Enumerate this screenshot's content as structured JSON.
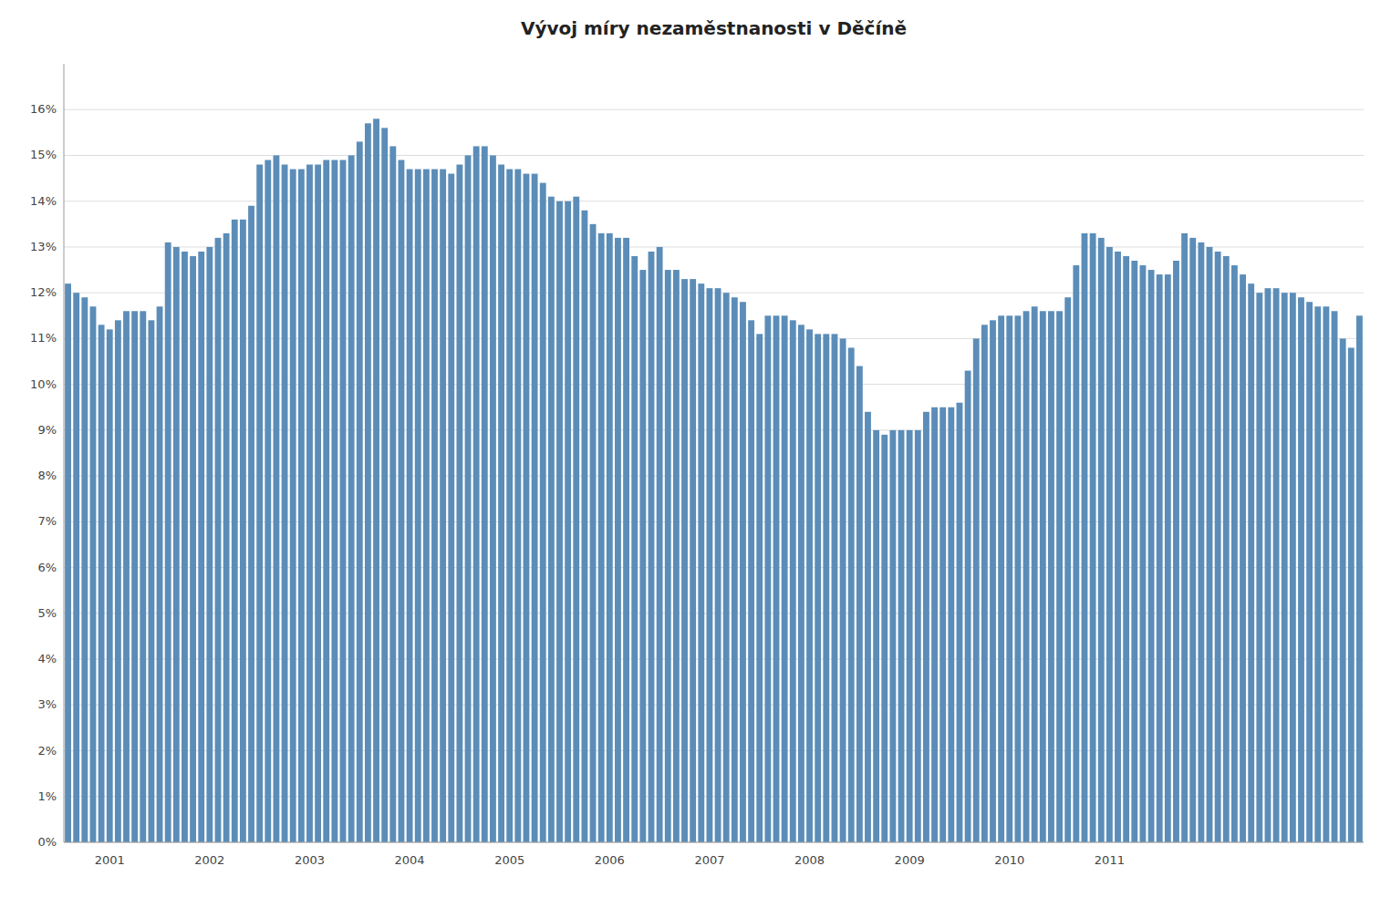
{
  "chart_data": {
    "type": "bar",
    "title": "Vývoj míry nezaměstnanosti v Děčíně",
    "color": "#5B8DB8",
    "grid": true,
    "ylim": [
      0,
      0.17
    ],
    "yticks": [
      {
        "value": 0.0,
        "label": "0%"
      },
      {
        "value": 0.01,
        "label": "1%"
      },
      {
        "value": 0.02,
        "label": "2%"
      },
      {
        "value": 0.03,
        "label": "3%"
      },
      {
        "value": 0.04,
        "label": "4%"
      },
      {
        "value": 0.05,
        "label": "5%"
      },
      {
        "value": 0.06,
        "label": "6%"
      },
      {
        "value": 0.07,
        "label": "7%"
      },
      {
        "value": 0.08,
        "label": "8%"
      },
      {
        "value": 0.09,
        "label": "9%"
      },
      {
        "value": 0.1,
        "label": "10%"
      },
      {
        "value": 0.11,
        "label": "11%"
      },
      {
        "value": 0.12,
        "label": "12%"
      },
      {
        "value": 0.13,
        "label": "13%"
      },
      {
        "value": 0.14,
        "label": "14%"
      },
      {
        "value": 0.15,
        "label": "15%"
      },
      {
        "value": 0.16,
        "label": "16%"
      }
    ],
    "categories": [
      null,
      null,
      null,
      null,
      null,
      "2001",
      null,
      null,
      null,
      null,
      null,
      null,
      null,
      null,
      null,
      null,
      null,
      "2002",
      null,
      null,
      null,
      null,
      null,
      null,
      null,
      null,
      null,
      null,
      null,
      "2003",
      null,
      null,
      null,
      null,
      null,
      null,
      null,
      null,
      null,
      null,
      null,
      "2004",
      null,
      null,
      null,
      null,
      null,
      null,
      null,
      null,
      null,
      null,
      null,
      "2005",
      null,
      null,
      null,
      null,
      null,
      null,
      null,
      null,
      null,
      null,
      null,
      "2006",
      null,
      null,
      null,
      null,
      null,
      null,
      null,
      null,
      null,
      null,
      null,
      "2007",
      null,
      null,
      null,
      null,
      null,
      null,
      null,
      null,
      null,
      null,
      null,
      "2008",
      null,
      null,
      null,
      null,
      null,
      null,
      null,
      null,
      null,
      null,
      null,
      "2009",
      null,
      null,
      null,
      null,
      null,
      null,
      null,
      null,
      null,
      null,
      null,
      "2010",
      null,
      null,
      null,
      null,
      null,
      null,
      null,
      null,
      null,
      null,
      null,
      "2011",
      null,
      null,
      null,
      null,
      null,
      null,
      null,
      null,
      null,
      null,
      null,
      null,
      null,
      null,
      null,
      null,
      null,
      null,
      null,
      null,
      null,
      null,
      null,
      null,
      null,
      null,
      null,
      null,
      null,
      null
    ],
    "values": [
      0.122,
      0.12,
      0.119,
      0.117,
      0.113,
      0.112,
      0.114,
      0.116,
      0.116,
      0.116,
      0.114,
      0.117,
      0.131,
      0.13,
      0.129,
      0.128,
      0.129,
      0.13,
      0.132,
      0.133,
      0.136,
      0.136,
      0.139,
      0.148,
      0.149,
      0.15,
      0.148,
      0.147,
      0.147,
      0.148,
      0.148,
      0.149,
      0.149,
      0.149,
      0.15,
      0.153,
      0.157,
      0.158,
      0.156,
      0.152,
      0.149,
      0.147,
      0.147,
      0.147,
      0.147,
      0.147,
      0.146,
      0.148,
      0.15,
      0.152,
      0.152,
      0.15,
      0.148,
      0.147,
      0.147,
      0.146,
      0.146,
      0.144,
      0.141,
      0.14,
      0.14,
      0.141,
      0.138,
      0.135,
      0.133,
      0.133,
      0.132,
      0.132,
      0.128,
      0.125,
      0.129,
      0.13,
      0.125,
      0.125,
      0.123,
      0.123,
      0.122,
      0.121,
      0.121,
      0.12,
      0.119,
      0.118,
      0.114,
      0.111,
      0.115,
      0.115,
      0.115,
      0.114,
      0.113,
      0.112,
      0.111,
      0.111,
      0.111,
      0.11,
      0.108,
      0.104,
      0.094,
      0.09,
      0.089,
      0.09,
      0.09,
      0.09,
      0.09,
      0.094,
      0.095,
      0.095,
      0.095,
      0.096,
      0.103,
      0.11,
      0.113,
      0.114,
      0.115,
      0.115,
      0.115,
      0.116,
      0.117,
      0.116,
      0.116,
      0.116,
      0.119,
      0.126,
      0.133,
      0.133,
      0.132,
      0.13,
      0.129,
      0.128,
      0.127,
      0.126,
      0.125,
      0.124,
      0.124,
      0.127,
      0.133,
      0.132,
      0.131,
      0.13,
      0.129,
      0.128,
      0.126,
      0.124,
      0.122,
      0.12,
      0.121,
      0.121,
      0.12,
      0.12,
      0.119,
      0.118,
      0.117,
      0.117,
      0.116,
      0.11,
      0.108,
      0.115
    ]
  }
}
